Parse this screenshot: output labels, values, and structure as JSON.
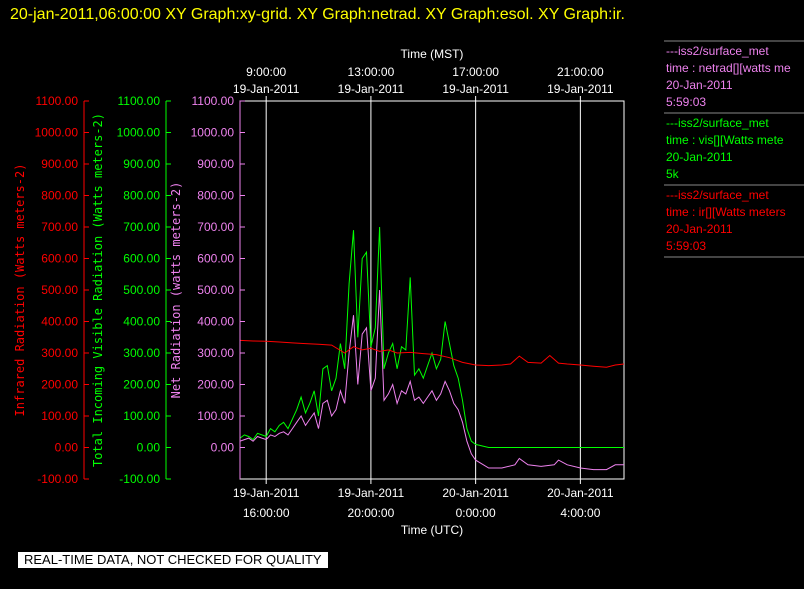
{
  "header": "20-jan-2011,06:00:00  XY Graph:xy-grid.  XY Graph:netrad.  XY Graph:esol.  XY Graph:ir.",
  "note": "REAL-TIME DATA, NOT CHECKED FOR QUALITY",
  "colors": {
    "ir": "#ff0000",
    "vis": "#00ff00",
    "net": "#ee82ee",
    "axis": "#ffffff",
    "header": "#ffff00"
  },
  "chart_data": {
    "type": "line",
    "x_unit": "UTC",
    "xlim": [
      "2011-01-19 15:00",
      "2011-01-20 05:40"
    ],
    "top_axis": {
      "title": "Time (MST)",
      "ticks": [
        {
          "date": "19-Jan-2011",
          "time": "9:00:00"
        },
        {
          "date": "19-Jan-2011",
          "time": "13:00:00"
        },
        {
          "date": "19-Jan-2011",
          "time": "17:00:00"
        },
        {
          "date": "19-Jan-2011",
          "time": "21:00:00"
        }
      ]
    },
    "bottom_axis": {
      "title": "Time (UTC)",
      "ticks": [
        {
          "date": "19-Jan-2011",
          "time": "16:00:00"
        },
        {
          "date": "19-Jan-2011",
          "time": "20:00:00"
        },
        {
          "date": "20-Jan-2011",
          "time": "0:00:00"
        },
        {
          "date": "20-Jan-2011",
          "time": "4:00:00"
        }
      ]
    },
    "y_axes": [
      {
        "id": "ir",
        "label": "Infrared Radiation (Watts meters-2)",
        "ylim": [
          -100,
          1100
        ]
      },
      {
        "id": "vis",
        "label": "Total Incoming Visible Radiation (Watts meters-2)",
        "ylim": [
          -100,
          1100
        ]
      },
      {
        "id": "net",
        "label": "Net Radiation (watts meters-2)",
        "ylim": [
          0,
          1100
        ]
      }
    ],
    "y_ticks": [
      "-100.00",
      "0.00",
      "100.00",
      "200.00",
      "300.00",
      "400.00",
      "500.00",
      "600.00",
      "700.00",
      "800.00",
      "900.00",
      "1000.00",
      "1100.00"
    ],
    "grid": "vertical",
    "series": [
      {
        "id": "net",
        "legend": [
          "---iss2/surface_met",
          "time : netrad[][watts me",
          "20-Jan-2011",
          "5:59:03"
        ],
        "x": [
          "2011-01-19 15:00",
          "2011-01-19 15:10",
          "2011-01-19 15:20",
          "2011-01-19 15:30",
          "2011-01-19 15:40",
          "2011-01-19 15:50",
          "2011-01-19 16:00",
          "2011-01-19 16:10",
          "2011-01-19 16:20",
          "2011-01-19 16:30",
          "2011-01-19 16:40",
          "2011-01-19 16:50",
          "2011-01-19 17:00",
          "2011-01-19 17:10",
          "2011-01-19 17:20",
          "2011-01-19 17:30",
          "2011-01-19 17:40",
          "2011-01-19 17:50",
          "2011-01-19 18:00",
          "2011-01-19 18:10",
          "2011-01-19 18:20",
          "2011-01-19 18:30",
          "2011-01-19 18:40",
          "2011-01-19 18:50",
          "2011-01-19 19:00",
          "2011-01-19 19:10",
          "2011-01-19 19:20",
          "2011-01-19 19:30",
          "2011-01-19 19:40",
          "2011-01-19 19:50",
          "2011-01-19 20:00",
          "2011-01-19 20:10",
          "2011-01-19 20:20",
          "2011-01-19 20:30",
          "2011-01-19 20:40",
          "2011-01-19 20:50",
          "2011-01-19 21:00",
          "2011-01-19 21:10",
          "2011-01-19 21:20",
          "2011-01-19 21:30",
          "2011-01-19 21:40",
          "2011-01-19 21:50",
          "2011-01-19 22:00",
          "2011-01-19 22:10",
          "2011-01-19 22:20",
          "2011-01-19 22:30",
          "2011-01-19 22:40",
          "2011-01-19 22:50",
          "2011-01-19 23:00",
          "2011-01-19 23:10",
          "2011-01-19 23:20",
          "2011-01-19 23:30",
          "2011-01-19 23:40",
          "2011-01-19 23:50",
          "2011-01-20 00:00",
          "2011-01-20 00:30",
          "2011-01-20 01:00",
          "2011-01-20 01:30",
          "2011-01-20 01:40",
          "2011-01-20 02:00",
          "2011-01-20 02:30",
          "2011-01-20 03:00",
          "2011-01-20 03:10",
          "2011-01-20 03:30",
          "2011-01-20 04:00",
          "2011-01-20 04:30",
          "2011-01-20 05:00",
          "2011-01-20 05:20",
          "2011-01-20 05:40"
        ],
        "y": [
          20,
          25,
          30,
          20,
          35,
          30,
          25,
          40,
          35,
          45,
          50,
          40,
          60,
          80,
          100,
          70,
          90,
          110,
          60,
          140,
          150,
          100,
          120,
          180,
          140,
          300,
          420,
          200,
          360,
          380,
          180,
          220,
          500,
          150,
          170,
          200,
          140,
          180,
          170,
          210,
          150,
          160,
          140,
          160,
          180,
          150,
          170,
          210,
          180,
          140,
          120,
          80,
          20,
          -20,
          -40,
          -65,
          -65,
          -55,
          -35,
          -55,
          -60,
          -55,
          -40,
          -55,
          -65,
          -70,
          -70,
          -55,
          -55
        ]
      },
      {
        "id": "vis",
        "legend": [
          "---iss2/surface_met",
          "time : vis[][Watts mete",
          "20-Jan-2011",
          "5k"
        ],
        "x": [
          "2011-01-19 15:00",
          "2011-01-19 15:10",
          "2011-01-19 15:20",
          "2011-01-19 15:30",
          "2011-01-19 15:40",
          "2011-01-19 15:50",
          "2011-01-19 16:00",
          "2011-01-19 16:10",
          "2011-01-19 16:20",
          "2011-01-19 16:30",
          "2011-01-19 16:40",
          "2011-01-19 16:50",
          "2011-01-19 17:00",
          "2011-01-19 17:10",
          "2011-01-19 17:20",
          "2011-01-19 17:30",
          "2011-01-19 17:40",
          "2011-01-19 17:50",
          "2011-01-19 18:00",
          "2011-01-19 18:10",
          "2011-01-19 18:20",
          "2011-01-19 18:30",
          "2011-01-19 18:40",
          "2011-01-19 18:50",
          "2011-01-19 19:00",
          "2011-01-19 19:10",
          "2011-01-19 19:20",
          "2011-01-19 19:30",
          "2011-01-19 19:40",
          "2011-01-19 19:50",
          "2011-01-19 20:00",
          "2011-01-19 20:10",
          "2011-01-19 20:20",
          "2011-01-19 20:30",
          "2011-01-19 20:40",
          "2011-01-19 20:50",
          "2011-01-19 21:00",
          "2011-01-19 21:10",
          "2011-01-19 21:20",
          "2011-01-19 21:30",
          "2011-01-19 21:40",
          "2011-01-19 21:50",
          "2011-01-19 22:00",
          "2011-01-19 22:10",
          "2011-01-19 22:20",
          "2011-01-19 22:30",
          "2011-01-19 22:40",
          "2011-01-19 22:50",
          "2011-01-19 23:00",
          "2011-01-19 23:10",
          "2011-01-19 23:20",
          "2011-01-19 23:30",
          "2011-01-19 23:40",
          "2011-01-19 23:50",
          "2011-01-20 00:00",
          "2011-01-20 00:30",
          "2011-01-20 01:00",
          "2011-01-20 02:00",
          "2011-01-20 03:00",
          "2011-01-20 04:00",
          "2011-01-20 05:00",
          "2011-01-20 05:40"
        ],
        "y": [
          30,
          40,
          35,
          25,
          45,
          40,
          35,
          60,
          50,
          70,
          80,
          60,
          90,
          120,
          160,
          110,
          140,
          180,
          100,
          250,
          260,
          180,
          220,
          330,
          250,
          520,
          690,
          350,
          600,
          620,
          320,
          380,
          700,
          250,
          300,
          330,
          250,
          320,
          310,
          540,
          230,
          250,
          220,
          260,
          300,
          250,
          280,
          400,
          330,
          260,
          220,
          150,
          60,
          20,
          10,
          0,
          0,
          0,
          0,
          0,
          0,
          0
        ]
      },
      {
        "id": "ir",
        "legend": [
          "---iss2/surface_met",
          "time : ir[][Watts meters",
          "20-Jan-2011",
          "5:59:03"
        ],
        "x": [
          "2011-01-19 15:00",
          "2011-01-19 15:30",
          "2011-01-19 16:00",
          "2011-01-19 16:30",
          "2011-01-19 17:00",
          "2011-01-19 17:30",
          "2011-01-19 18:00",
          "2011-01-19 18:30",
          "2011-01-19 19:00",
          "2011-01-19 19:20",
          "2011-01-19 19:40",
          "2011-01-19 20:00",
          "2011-01-19 20:20",
          "2011-01-19 20:40",
          "2011-01-19 21:00",
          "2011-01-19 21:30",
          "2011-01-19 22:00",
          "2011-01-19 22:30",
          "2011-01-19 23:00",
          "2011-01-19 23:30",
          "2011-01-20 00:00",
          "2011-01-20 00:30",
          "2011-01-20 01:00",
          "2011-01-20 01:20",
          "2011-01-20 01:40",
          "2011-01-20 02:00",
          "2011-01-20 02:30",
          "2011-01-20 02:50",
          "2011-01-20 03:10",
          "2011-01-20 03:30",
          "2011-01-20 04:00",
          "2011-01-20 04:30",
          "2011-01-20 05:00",
          "2011-01-20 05:20",
          "2011-01-20 05:40"
        ],
        "y": [
          340,
          338,
          337,
          335,
          332,
          330,
          328,
          325,
          300,
          320,
          310,
          315,
          305,
          310,
          300,
          302,
          298,
          295,
          285,
          270,
          262,
          260,
          262,
          265,
          290,
          270,
          268,
          292,
          268,
          265,
          262,
          258,
          255,
          262,
          265
        ]
      }
    ]
  }
}
